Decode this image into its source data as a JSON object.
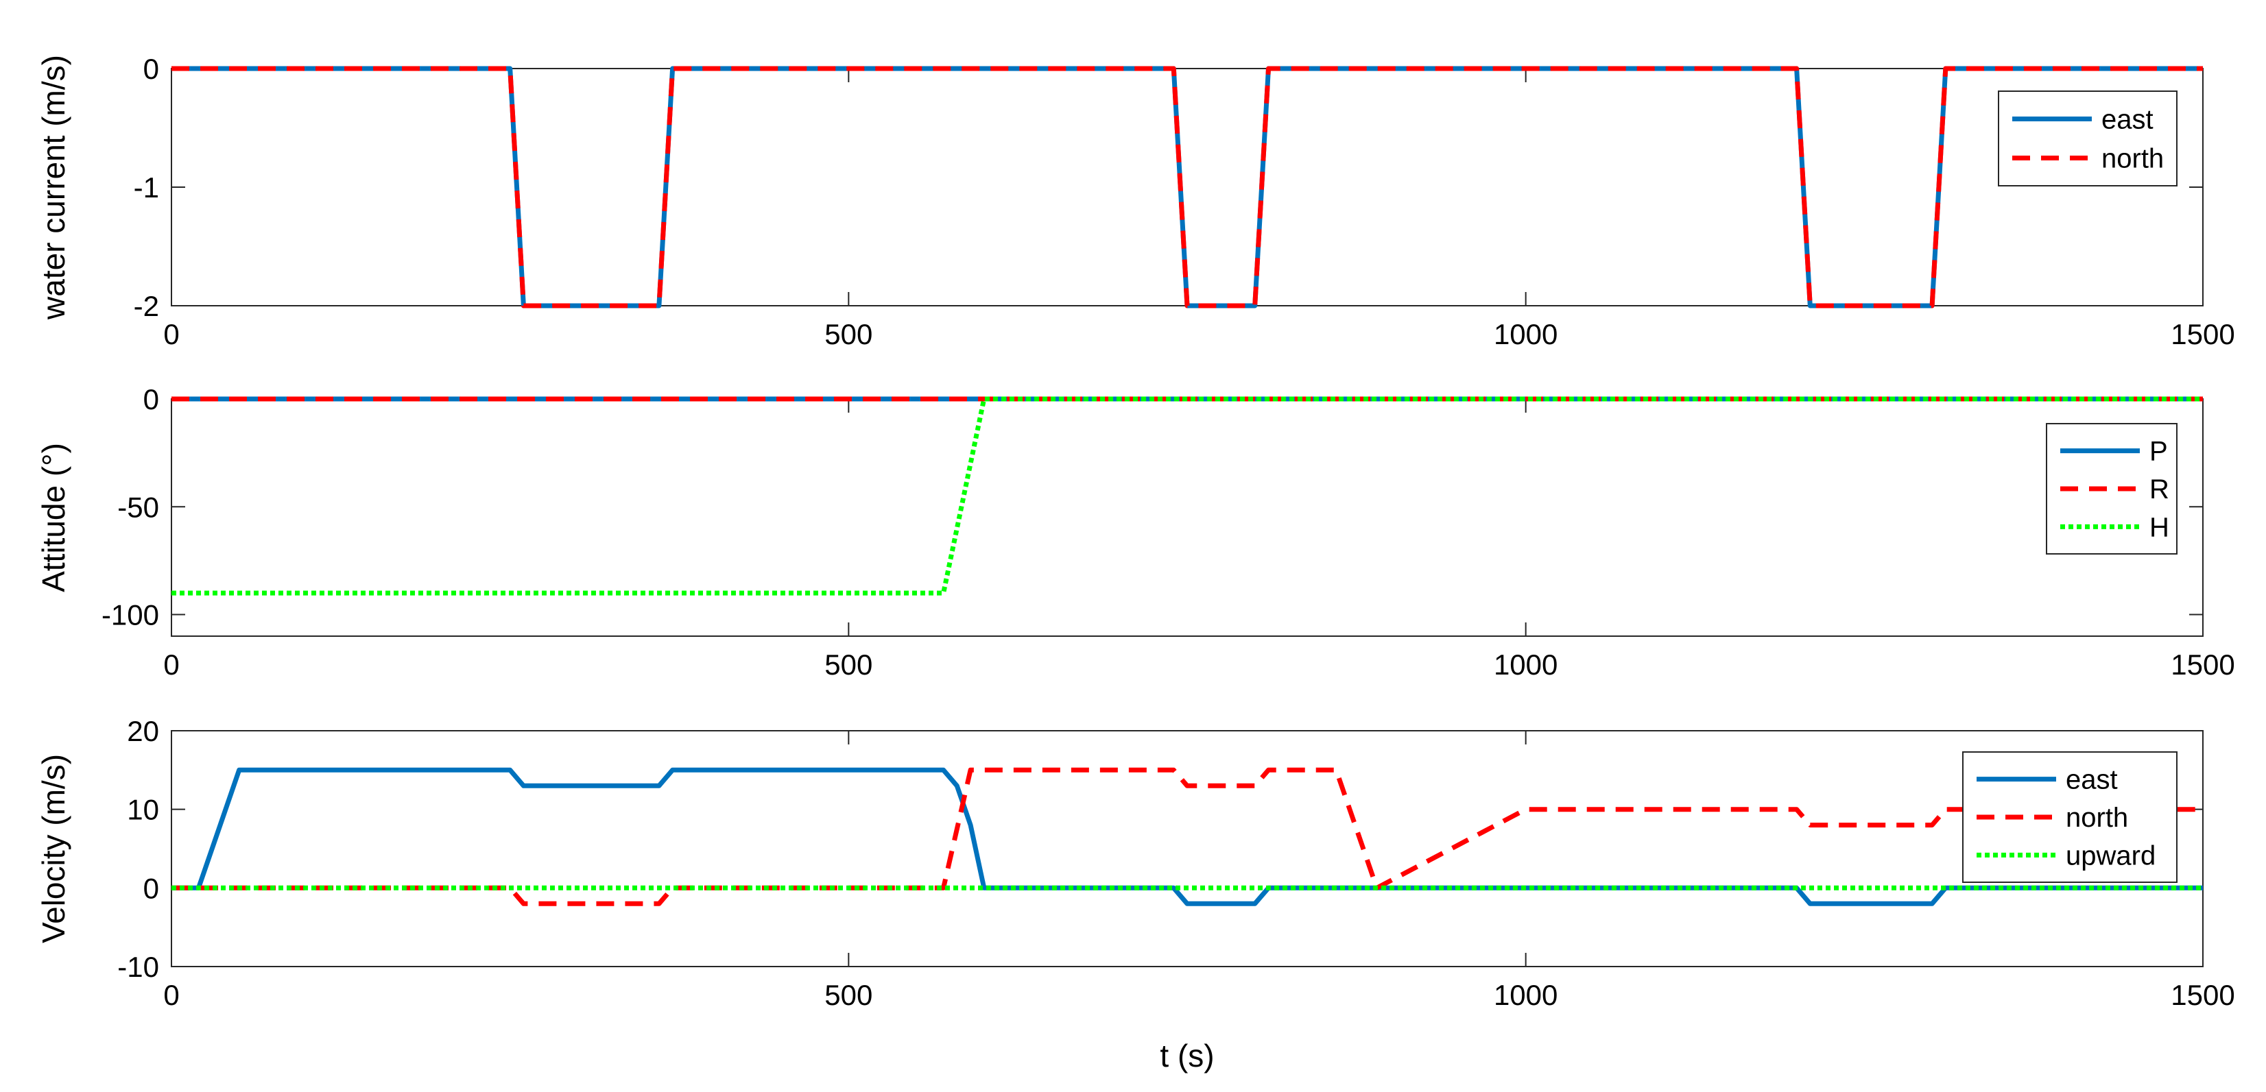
{
  "colors": {
    "east": "#0072BD",
    "north": "#FF0000",
    "upward": "#00FF00",
    "P": "#0072BD",
    "R": "#FF0000",
    "H": "#00FF00"
  },
  "chart_data": [
    {
      "type": "line",
      "ylabel": "water current (m/s)",
      "xlabel": "",
      "xlim": [
        0,
        1500
      ],
      "ylim": [
        -2,
        0
      ],
      "xticks": [
        "0",
        "500",
        "1000",
        "1500"
      ],
      "yticks": [
        "0",
        "-1",
        "-2"
      ],
      "ytick_values": [
        0,
        -1,
        -2
      ],
      "grid": false,
      "legend_position": "top-right",
      "series": [
        {
          "name": "east",
          "style": "solid",
          "color_key": "east",
          "x": [
            0,
            250,
            260,
            360,
            370,
            740,
            750,
            800,
            810,
            1200,
            1210,
            1300,
            1310,
            1500
          ],
          "y": [
            0,
            0,
            -2,
            -2,
            0,
            0,
            -2,
            -2,
            0,
            0,
            -2,
            -2,
            0,
            0
          ]
        },
        {
          "name": "north",
          "style": "dashed",
          "color_key": "north",
          "x": [
            0,
            250,
            260,
            360,
            370,
            740,
            750,
            800,
            810,
            1200,
            1210,
            1300,
            1310,
            1500
          ],
          "y": [
            0,
            0,
            -2,
            -2,
            0,
            0,
            -2,
            -2,
            0,
            0,
            -2,
            -2,
            0,
            0
          ]
        }
      ]
    },
    {
      "type": "line",
      "ylabel": "Attitude (°)",
      "xlabel": "",
      "xlim": [
        0,
        1500
      ],
      "ylim": [
        -110,
        0
      ],
      "xticks": [
        "0",
        "500",
        "1000",
        "1500"
      ],
      "yticks": [
        "0",
        "-50",
        "-100"
      ],
      "ytick_values": [
        0,
        -50,
        -100
      ],
      "grid": false,
      "legend_position": "top-right",
      "series": [
        {
          "name": "P",
          "style": "solid",
          "color_key": "P",
          "x": [
            0,
            1500
          ],
          "y": [
            0,
            0
          ]
        },
        {
          "name": "R",
          "style": "dashed",
          "color_key": "R",
          "x": [
            0,
            1500
          ],
          "y": [
            0,
            0
          ]
        },
        {
          "name": "H",
          "style": "dotted",
          "color_key": "H",
          "x": [
            0,
            570,
            600,
            1500
          ],
          "y": [
            -90,
            -90,
            0,
            0
          ]
        }
      ]
    },
    {
      "type": "line",
      "ylabel": "Velocity (m/s)",
      "xlabel": "t (s)",
      "xlim": [
        0,
        1500
      ],
      "ylim": [
        -10,
        20
      ],
      "xticks": [
        "0",
        "500",
        "1000",
        "1500"
      ],
      "yticks": [
        "20",
        "10",
        "0",
        "-10"
      ],
      "ytick_values": [
        20,
        10,
        0,
        -10
      ],
      "grid": false,
      "legend_position": "top-right",
      "series": [
        {
          "name": "east",
          "style": "solid",
          "color_key": "east",
          "x": [
            0,
            20,
            50,
            250,
            260,
            360,
            370,
            570,
            580,
            590,
            600,
            740,
            750,
            800,
            810,
            1200,
            1210,
            1300,
            1310,
            1500
          ],
          "y": [
            0,
            0,
            15,
            15,
            13,
            13,
            15,
            15,
            13,
            8,
            0,
            0,
            -2,
            -2,
            0,
            0,
            -2,
            -2,
            0,
            0
          ]
        },
        {
          "name": "north",
          "style": "dashed",
          "color_key": "north",
          "x": [
            0,
            250,
            260,
            360,
            370,
            570,
            590,
            740,
            750,
            800,
            810,
            860,
            890,
            1000,
            1200,
            1210,
            1300,
            1310,
            1500
          ],
          "y": [
            0,
            0,
            -2,
            -2,
            0,
            0,
            15,
            15,
            13,
            13,
            15,
            15,
            0,
            10,
            10,
            8,
            8,
            10,
            10
          ]
        },
        {
          "name": "upward",
          "style": "dotted",
          "color_key": "upward",
          "x": [
            0,
            1500
          ],
          "y": [
            0,
            0
          ]
        }
      ]
    }
  ]
}
